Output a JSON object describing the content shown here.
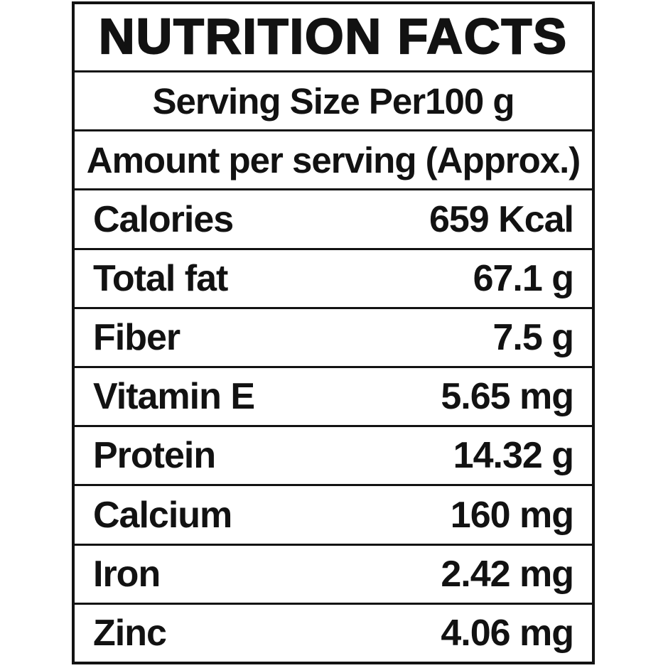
{
  "label": {
    "title": "NUTRITION FACTS",
    "serving_size": "Serving Size Per100 g",
    "amount_note": "Amount per serving (Approx.)",
    "rows": [
      {
        "name": "Calories",
        "value": "659 Kcal"
      },
      {
        "name": "Total fat",
        "value": "67.1 g"
      },
      {
        "name": "Fiber",
        "value": "7.5 g"
      },
      {
        "name": "Vitamin E",
        "value": "5.65 mg"
      },
      {
        "name": "Protein",
        "value": "14.32 g"
      },
      {
        "name": "Calcium",
        "value": "160 mg"
      },
      {
        "name": "Iron",
        "value": "2.42 mg"
      },
      {
        "name": "Zinc",
        "value": "4.06 mg"
      }
    ],
    "colors": {
      "text": "#121212",
      "border": "#121212",
      "background": "#ffffff"
    }
  }
}
